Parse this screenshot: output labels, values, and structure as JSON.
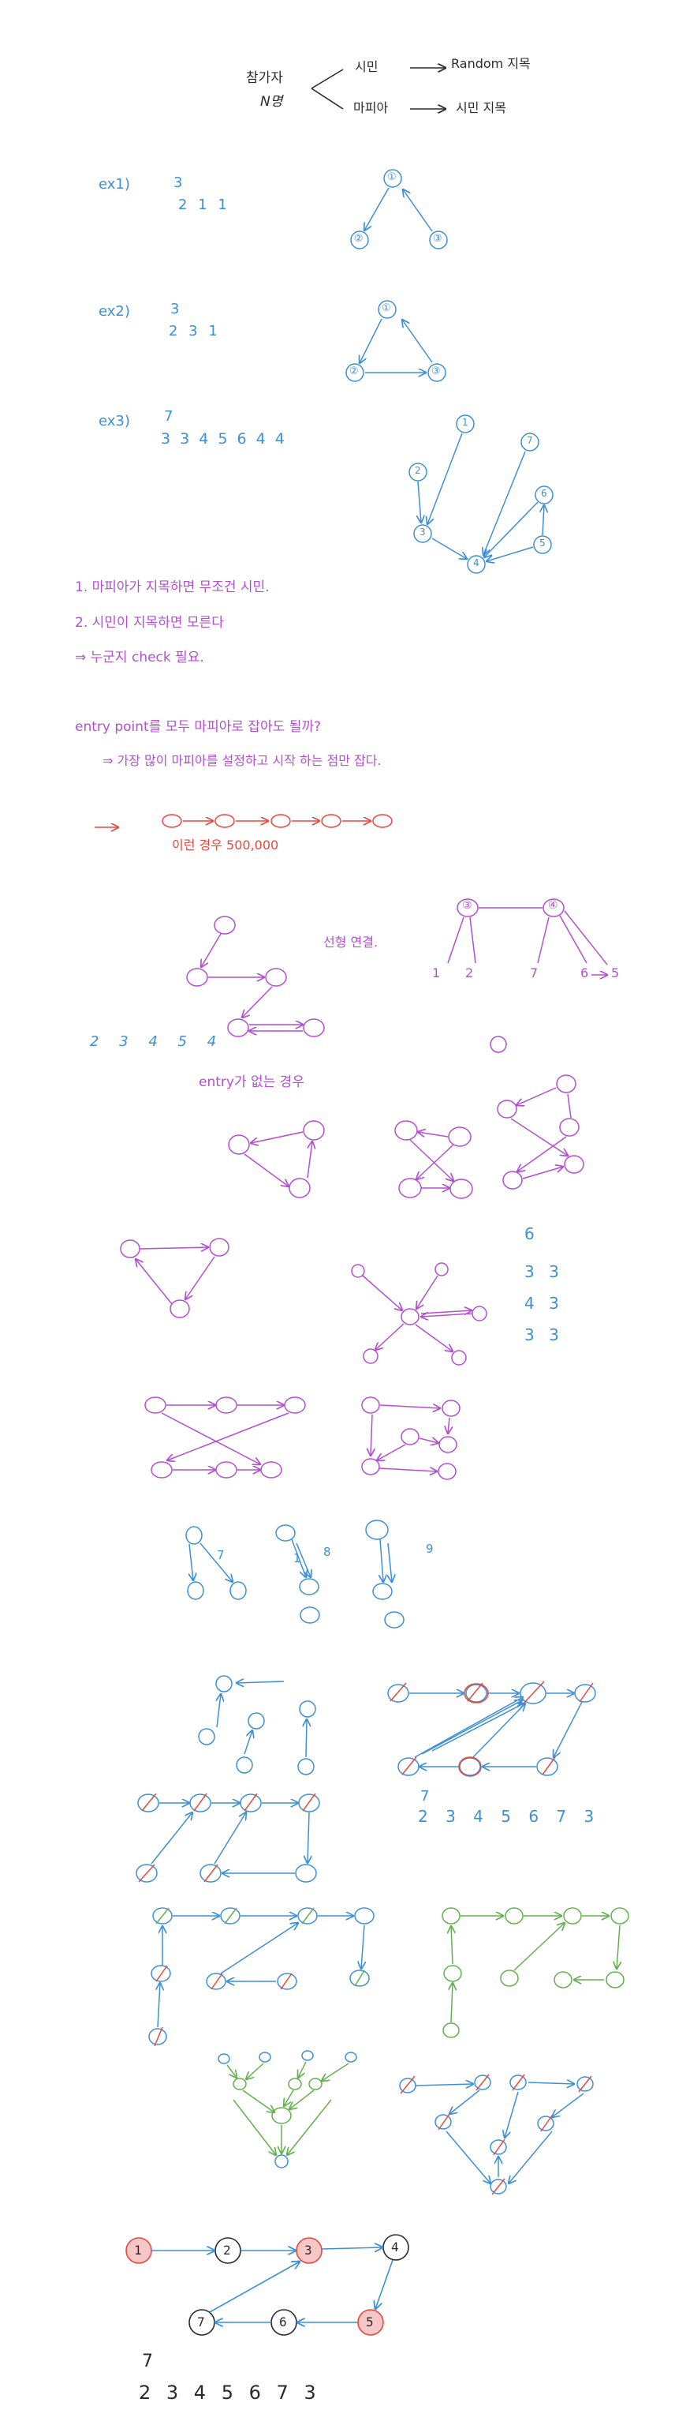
{
  "colors": {
    "black": "#2a2a2a",
    "blue": "#3d8fd6",
    "purple": "#b24fd1",
    "red": "#e8473c",
    "green": "#62b04d",
    "pink_fill": "#f7c7c7"
  },
  "header": {
    "participants_line1": "참가자",
    "participants_line2": "N명",
    "citizen": "시민",
    "citizen_action": "Random 지목",
    "mafia": "마피아",
    "mafia_action": "시민 지목"
  },
  "examples": [
    {
      "label": "ex1)",
      "n": "3",
      "seq": "2 1 1",
      "nodes": [
        "①",
        "②",
        "③"
      ]
    },
    {
      "label": "ex2)",
      "n": "3",
      "seq": "2 3 1",
      "nodes": [
        "①",
        "②",
        "③"
      ]
    },
    {
      "label": "ex3)",
      "n": "7",
      "seq": "3 3 4 5 6 4 4",
      "nodes": [
        "1",
        "7",
        "2",
        "6",
        "3",
        "5",
        "4"
      ]
    }
  ],
  "notes": {
    "line1": "1. 마피아가 지목하면 무조건 시민.",
    "line2": "2. 시민이 지목하면 모른다",
    "line3": "⇒ 누군지 check 필요.",
    "line4": "entry point를 모두 마피아로 잡아도 될까?",
    "line5": "⇒ 가장 많이 마피아를 설정하고 시작 하는 점만 잡다.",
    "chain_note": "이런 경우 500,000",
    "linear_label": "선형 연결.",
    "tree_nodes": [
      "③",
      "④",
      "1",
      "2",
      "7",
      "6",
      "5"
    ],
    "seq_1": "2 3 4 5 4",
    "no_entry": "entry가 없는 경우",
    "side_numbers": [
      "6",
      "3 3",
      "4 3",
      "3 3"
    ],
    "small_digits": [
      "7",
      "1",
      "8",
      "9"
    ],
    "example_7": {
      "n": "7",
      "seq": "2 3 4 5 6 7 3"
    }
  },
  "final": {
    "nodes": [
      "1",
      "2",
      "3",
      "4",
      "5",
      "6",
      "7"
    ],
    "n": "7",
    "seq": "2 3 4 5 6 7 3"
  }
}
